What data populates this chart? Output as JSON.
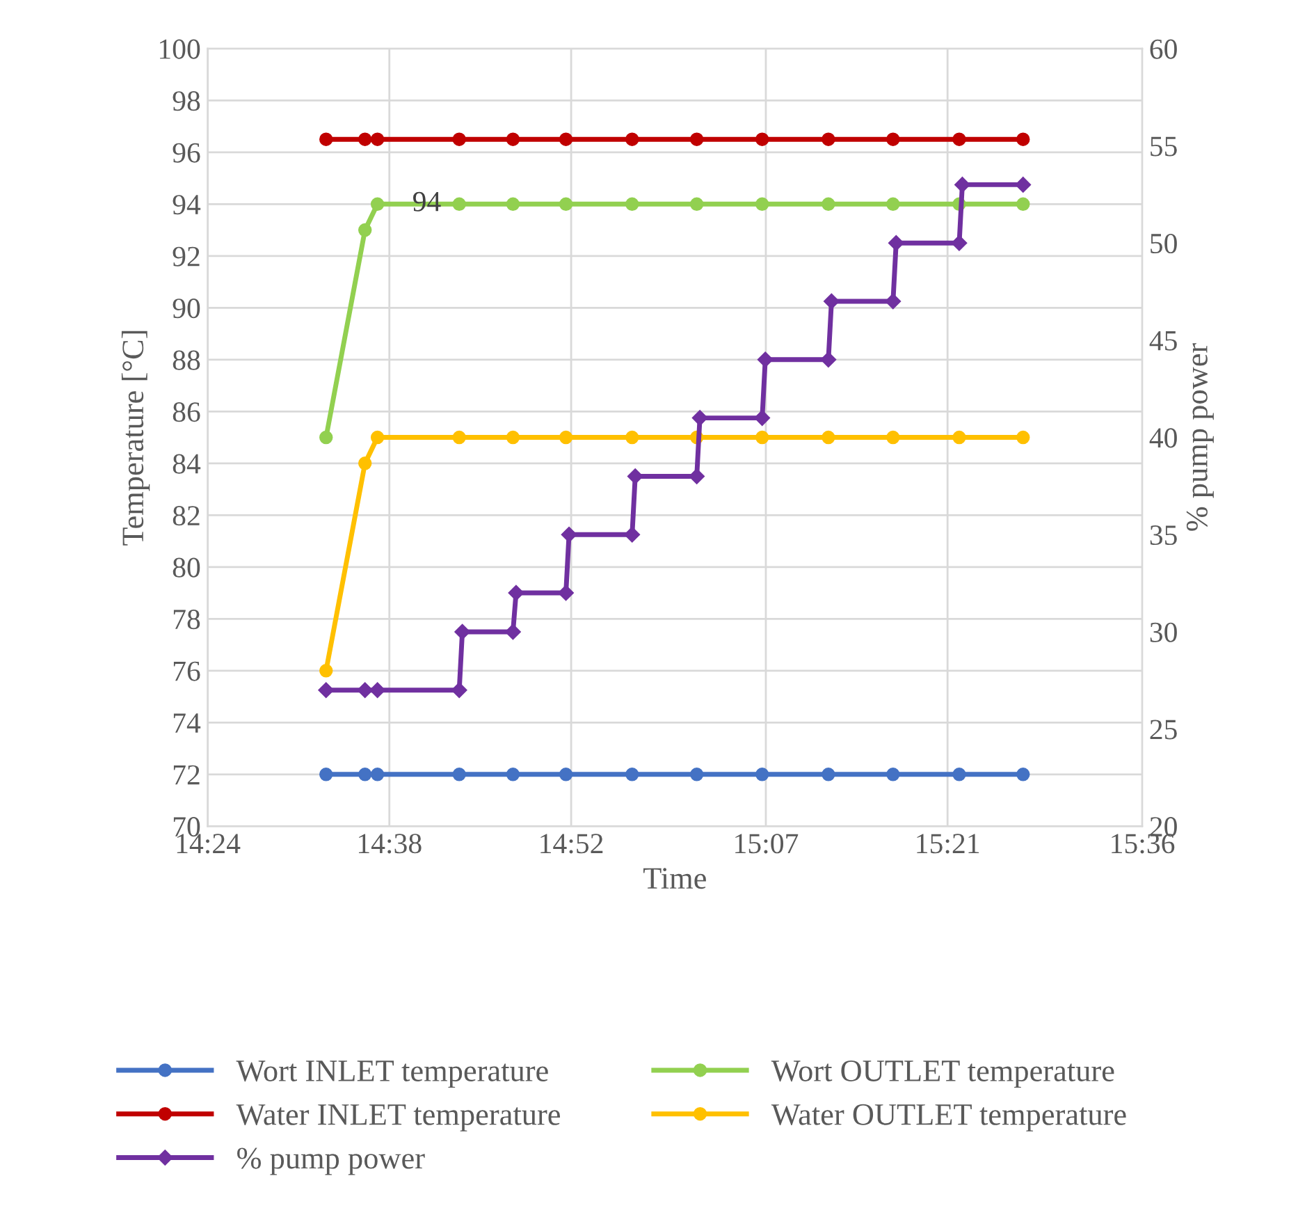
{
  "chart_data": {
    "type": "line",
    "xlabel": "Time",
    "ylabel": "Temperature [°C]",
    "y2label": "% pump power",
    "xlim": [
      14.4,
      15.6
    ],
    "xticks": [
      {
        "value": 14.4,
        "label": "14:24"
      },
      {
        "value": 14.6333,
        "label": "14:38"
      },
      {
        "value": 14.8667,
        "label": "14:52"
      },
      {
        "value": 15.1167,
        "label": "15:07"
      },
      {
        "value": 15.35,
        "label": "15:21"
      },
      {
        "value": 15.6,
        "label": "15:36"
      }
    ],
    "ylim": [
      70,
      100
    ],
    "yticks": [
      70,
      72,
      74,
      76,
      78,
      80,
      82,
      84,
      86,
      88,
      90,
      92,
      94,
      96,
      98,
      100
    ],
    "y2lim": [
      20,
      60
    ],
    "y2ticks": [
      20,
      25,
      30,
      35,
      40,
      45,
      50,
      55,
      60
    ],
    "grid": true,
    "legend": "bottom",
    "line_style": "solid",
    "x": [
      14.552,
      14.602,
      14.618,
      14.723,
      14.792,
      14.86,
      14.945,
      15.028,
      15.112,
      15.197,
      15.28,
      15.365,
      15.447
    ],
    "series": [
      {
        "name": "Wort INLET temperature",
        "color": "#4472c4",
        "marker": "circle",
        "values": [
          72,
          72,
          72,
          72,
          72,
          72,
          72,
          72,
          72,
          72,
          72,
          72,
          72
        ]
      },
      {
        "name": "Wort OUTLET temperature",
        "color": "#92d050",
        "marker": "circle",
        "values": [
          85,
          93,
          94,
          94,
          94,
          94,
          94,
          94,
          94,
          94,
          94,
          94,
          94
        ]
      },
      {
        "name": "Water INLET temperature",
        "color": "#c00000",
        "marker": "circle",
        "values": [
          96.5,
          96.5,
          96.5,
          96.5,
          96.5,
          96.5,
          96.5,
          96.5,
          96.5,
          96.5,
          96.5,
          96.5,
          96.5
        ]
      },
      {
        "name": "Water OUTLET temperature",
        "color": "#ffc000",
        "marker": "circle",
        "values": [
          76,
          84,
          85,
          85,
          85,
          85,
          85,
          85,
          85,
          85,
          85,
          85,
          85
        ]
      },
      {
        "name": "% pump power",
        "color": "#7030a0",
        "marker": "diamond",
        "axis": "y2",
        "x": [
          14.552,
          14.602,
          14.618,
          14.723,
          14.727,
          14.792,
          14.796,
          14.86,
          14.864,
          14.945,
          14.949,
          15.028,
          15.032,
          15.112,
          15.116,
          15.197,
          15.201,
          15.28,
          15.284,
          15.365,
          15.369,
          15.447
        ],
        "values": [
          27,
          27,
          27,
          27,
          30,
          30,
          32,
          32,
          35,
          35,
          38,
          38,
          41,
          41,
          44,
          44,
          47,
          47,
          50,
          50,
          53,
          53
        ]
      }
    ],
    "annotations": [
      {
        "text": "94",
        "x": 14.618,
        "y": 94
      }
    ]
  }
}
